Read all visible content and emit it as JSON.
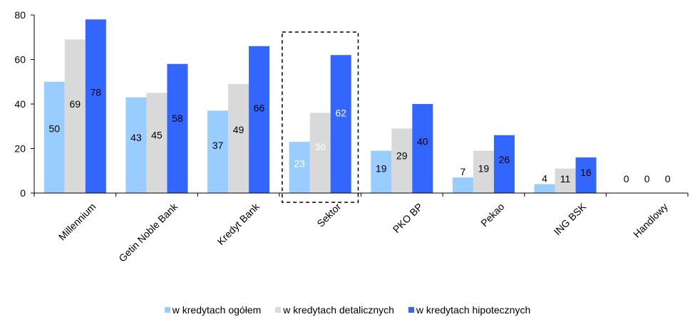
{
  "chart_data": {
    "type": "bar",
    "categories": [
      "Millennium",
      "Getin Noble Bank",
      "Kredyt Bank",
      "Sektor",
      "PKO BP",
      "Pekao",
      "ING BSK",
      "Handlowy"
    ],
    "series": [
      {
        "name": "w kredytach ogółem",
        "color": "#99ccff",
        "values": [
          50,
          43,
          37,
          23,
          19,
          7,
          4,
          0
        ]
      },
      {
        "name": "w kredytach detalicznych",
        "color": "#d9d9d9",
        "values": [
          69,
          45,
          49,
          36,
          29,
          19,
          11,
          0
        ]
      },
      {
        "name": "w kredytach hipotecznych",
        "color": "#3366ff",
        "values": [
          78,
          58,
          66,
          62,
          40,
          26,
          16,
          0
        ]
      }
    ],
    "ylim": [
      0,
      80
    ],
    "yticks": [
      0,
      20,
      40,
      60,
      80
    ],
    "highlight_category": "Sektor",
    "legend_position": "bottom",
    "grid": false
  }
}
